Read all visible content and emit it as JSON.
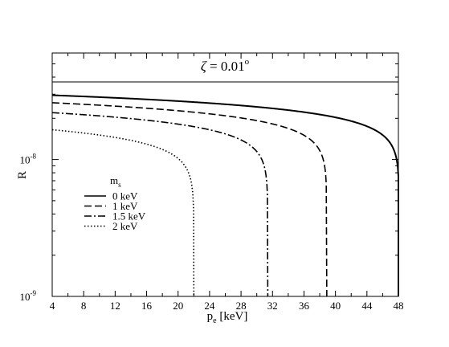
{
  "chart_data": {
    "type": "line",
    "annotation": {
      "symbol": "ζ",
      "value": " = 0.01",
      "sup": "o"
    },
    "xlabel": {
      "main": "p",
      "sub": "e",
      "rest": " [keV]"
    },
    "ylabel": "R",
    "xlim": [
      4,
      48
    ],
    "ylim": [
      1e-09,
      6e-08
    ],
    "yscale": "log",
    "grid": false,
    "x_ticks": [
      "4",
      "8",
      "12",
      "16",
      "20",
      "24",
      "28",
      "32",
      "36",
      "40",
      "44",
      "48"
    ],
    "y_ticks": [
      {
        "base": "10",
        "exp": "-9",
        "value": 1e-09
      },
      {
        "base": "10",
        "exp": "-8",
        "value": 1e-08
      }
    ],
    "legend": {
      "title_main": "m",
      "title_sub": "s",
      "placement": "center-left"
    },
    "series": [
      {
        "name": "0 keV",
        "dash": "solid",
        "amplitude": 2.95e-08,
        "endpoint": 48.1
      },
      {
        "name": "1 keV",
        "dash": "dashed",
        "amplitude": 2.6e-08,
        "endpoint": 38.9
      },
      {
        "name": "1.5 keV",
        "dash": "dashdot",
        "amplitude": 2.2e-08,
        "endpoint": 31.4
      },
      {
        "name": "2 keV",
        "dash": "dotted",
        "amplitude": 1.65e-08,
        "endpoint": 22.0
      }
    ]
  }
}
